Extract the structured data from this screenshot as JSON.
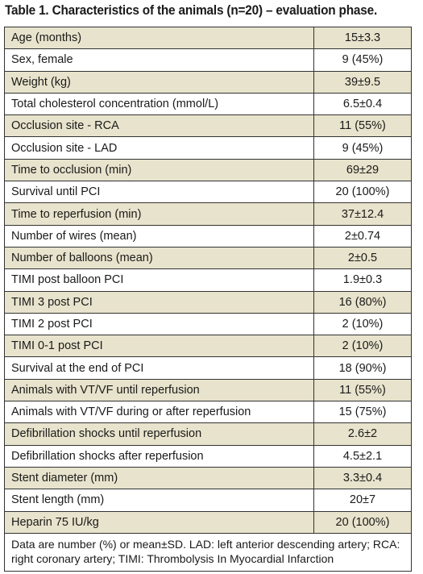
{
  "title": "Table 1. Characteristics of the animals (n=20) – evaluation phase.",
  "rows": [
    {
      "label": "Age (months)",
      "value": "15±3.3"
    },
    {
      "label": "Sex, female",
      "value": "9 (45%)"
    },
    {
      "label": "Weight (kg)",
      "value": "39±9.5"
    },
    {
      "label": "Total cholesterol concentration (mmol/L)",
      "value": "6.5±0.4"
    },
    {
      "label": "Occlusion site - RCA",
      "value": "11 (55%)"
    },
    {
      "label": "Occlusion site - LAD",
      "value": "9 (45%)"
    },
    {
      "label": "Time to occlusion (min)",
      "value": "69±29"
    },
    {
      "label": "Survival until PCI",
      "value": "20 (100%)"
    },
    {
      "label": "Time to reperfusion (min)",
      "value": "37±12.4"
    },
    {
      "label": "Number of wires (mean)",
      "value": "2±0.74"
    },
    {
      "label": "Number of balloons (mean)",
      "value": "2±0.5"
    },
    {
      "label": "TIMI post balloon PCI",
      "value": "1.9±0.3"
    },
    {
      "label": "TIMI 3 post PCI",
      "value": "16 (80%)"
    },
    {
      "label": "TIMI 2 post PCI",
      "value": "2 (10%)"
    },
    {
      "label": "TIMI 0-1 post PCI",
      "value": "2 (10%)"
    },
    {
      "label": "Survival at the end of PCI",
      "value": "18 (90%)"
    },
    {
      "label": "Animals with VT/VF until reperfusion",
      "value": "11 (55%)"
    },
    {
      "label": "Animals with VT/VF during or after reperfusion",
      "value": "15 (75%)"
    },
    {
      "label": "Defibrillation shocks until reperfusion",
      "value": "2.6±2"
    },
    {
      "label": "Defibrillation shocks after reperfusion",
      "value": "4.5±2.1"
    },
    {
      "label": "Stent diameter (mm)",
      "value": "3.3±0.4"
    },
    {
      "label": "Stent length (mm)",
      "value": "20±7"
    },
    {
      "label": "Heparin 75 IU/kg",
      "value": "20 (100%)"
    }
  ],
  "footnote": "Data are number (%) or mean±SD. LAD: left anterior descending artery; RCA: right coronary artery; TIMI: Thrombolysis In Myocardial Infarction",
  "colors": {
    "shaded_row": "#e8e3cc",
    "border": "#333333"
  }
}
